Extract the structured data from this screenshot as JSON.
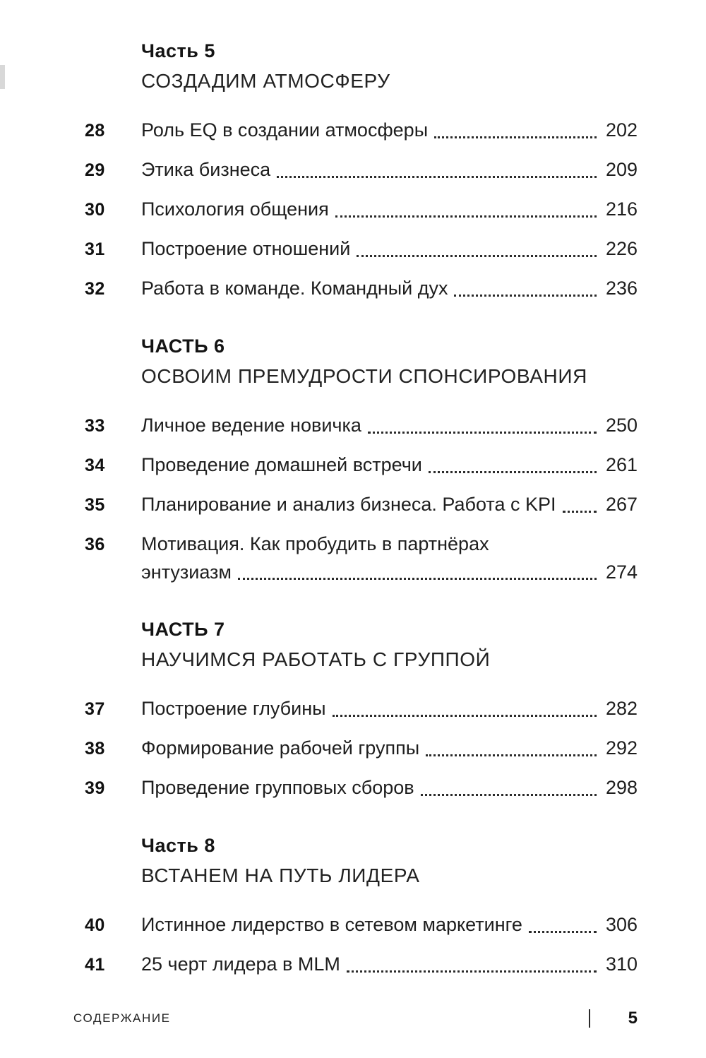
{
  "sections": [
    {
      "part_label": "Часть 5",
      "part_title": "СОЗДАДИМ АТМОСФЕРУ",
      "entries": [
        {
          "num": "28",
          "title": "Роль EQ в создании атмосферы",
          "page": "202"
        },
        {
          "num": "29",
          "title": "Этика бизнеса",
          "page": "209"
        },
        {
          "num": "30",
          "title": "Психология общения",
          "page": "216"
        },
        {
          "num": "31",
          "title": "Построение отношений",
          "page": "226"
        },
        {
          "num": "32",
          "title": "Работа в команде. Командный дух",
          "page": "236"
        }
      ]
    },
    {
      "part_label": "ЧАСТЬ 6",
      "part_title": "ОСВОИМ ПРЕМУДРОСТИ СПОНСИРОВАНИЯ",
      "entries": [
        {
          "num": "33",
          "title": "Личное ведение новичка",
          "page": "250"
        },
        {
          "num": "34",
          "title": "Проведение домашней встречи",
          "page": "261"
        },
        {
          "num": "35",
          "title": "Планирование и анализ бизнеса. Работа с KPI",
          "page": "267"
        },
        {
          "num": "36",
          "title_line1": "Мотивация. Как пробудить в партнёрах",
          "title_line2": "энтузиазм",
          "page": "274"
        }
      ]
    },
    {
      "part_label": "ЧАСТЬ 7",
      "part_title": "НАУЧИМСЯ РАБОТАТЬ С ГРУППОЙ",
      "entries": [
        {
          "num": "37",
          "title": "Построение глубины",
          "page": "282"
        },
        {
          "num": "38",
          "title": "Формирование рабочей группы",
          "page": "292"
        },
        {
          "num": "39",
          "title": "Проведение групповых сборов",
          "page": "298"
        }
      ]
    },
    {
      "part_label": "Часть 8",
      "part_title": "ВСТАНЕМ НА ПУТЬ ЛИДЕРА",
      "entries": [
        {
          "num": "40",
          "title": "Истинное лидерство в сетевом маркетинге",
          "page": "306"
        },
        {
          "num": "41",
          "title": "25 черт лидера в MLM",
          "page": "310"
        }
      ]
    }
  ],
  "footer": {
    "label": "СОДЕРЖАНИЕ",
    "page_number": "5"
  }
}
